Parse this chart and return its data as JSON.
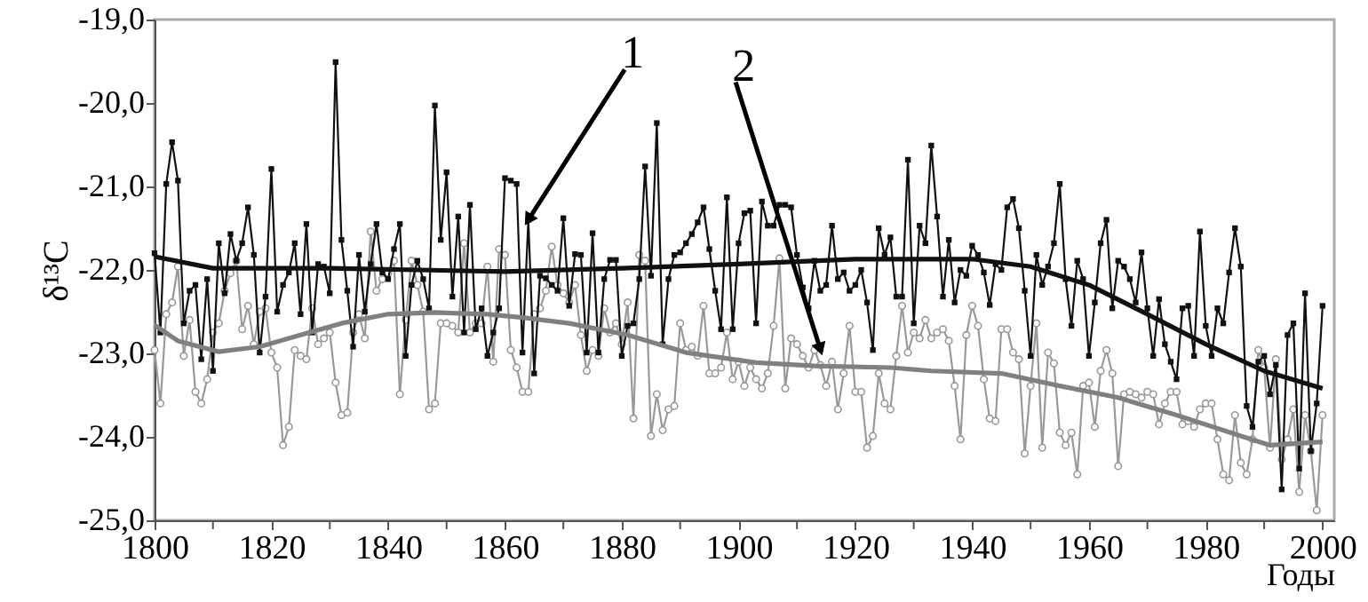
{
  "chart_data": {
    "type": "line",
    "xlabel": "Годы",
    "ylabel": "δ¹³C",
    "xlim": [
      1800,
      2002
    ],
    "ylim": [
      -25,
      -19
    ],
    "xticks": [
      1800,
      {
        "value": 1810,
        "label": null
      },
      1820,
      {
        "value": 1830,
        "label": null
      },
      1840,
      {
        "value": 1850,
        "label": null
      },
      1860,
      {
        "value": 1870,
        "label": null
      },
      1880,
      {
        "value": 1890,
        "label": null
      },
      1900,
      {
        "value": 1910,
        "label": null
      },
      1920,
      {
        "value": 1930,
        "label": null
      },
      1940,
      {
        "value": 1950,
        "label": null
      },
      1960,
      {
        "value": 1970,
        "label": null
      },
      1980,
      {
        "value": 1990,
        "label": null
      },
      2000
    ],
    "yticks": [
      {
        "value": -25,
        "label": "-25,0"
      },
      {
        "value": -24,
        "label": "-24,0"
      },
      {
        "value": -23,
        "label": "-23,0"
      },
      {
        "value": -22,
        "label": "-22,0"
      },
      {
        "value": -21,
        "label": "-21,0"
      },
      {
        "value": -20,
        "label": "-20,0"
      },
      {
        "value": -19,
        "label": "-19,0"
      }
    ],
    "x": [
      1800,
      1801,
      1802,
      1803,
      1804,
      1805,
      1806,
      1807,
      1808,
      1809,
      1810,
      1811,
      1812,
      1813,
      1814,
      1815,
      1816,
      1817,
      1818,
      1819,
      1820,
      1821,
      1822,
      1823,
      1824,
      1825,
      1826,
      1827,
      1828,
      1829,
      1830,
      1831,
      1832,
      1833,
      1834,
      1835,
      1836,
      1837,
      1838,
      1839,
      1840,
      1841,
      1842,
      1843,
      1844,
      1845,
      1846,
      1847,
      1848,
      1849,
      1850,
      1851,
      1852,
      1853,
      1854,
      1855,
      1856,
      1857,
      1858,
      1859,
      1860,
      1861,
      1862,
      1863,
      1864,
      1865,
      1866,
      1867,
      1868,
      1869,
      1870,
      1871,
      1872,
      1873,
      1874,
      1875,
      1876,
      1877,
      1878,
      1879,
      1880,
      1881,
      1882,
      1883,
      1884,
      1885,
      1886,
      1887,
      1888,
      1889,
      1890,
      1891,
      1892,
      1893,
      1894,
      1895,
      1896,
      1897,
      1898,
      1899,
      1900,
      1901,
      1902,
      1903,
      1904,
      1905,
      1906,
      1907,
      1908,
      1909,
      1910,
      1911,
      1912,
      1913,
      1914,
      1915,
      1916,
      1917,
      1918,
      1919,
      1920,
      1921,
      1922,
      1923,
      1924,
      1925,
      1926,
      1927,
      1928,
      1929,
      1930,
      1931,
      1932,
      1933,
      1934,
      1935,
      1936,
      1937,
      1938,
      1939,
      1940,
      1941,
      1942,
      1943,
      1944,
      1945,
      1946,
      1947,
      1948,
      1949,
      1950,
      1951,
      1952,
      1953,
      1954,
      1955,
      1956,
      1957,
      1958,
      1959,
      1960,
      1961,
      1962,
      1963,
      1964,
      1965,
      1966,
      1967,
      1968,
      1969,
      1970,
      1971,
      1972,
      1973,
      1974,
      1975,
      1976,
      1977,
      1978,
      1979,
      1980,
      1981,
      1982,
      1983,
      1984,
      1985,
      1986,
      1987,
      1988,
      1989,
      1990,
      1991,
      1992,
      1993,
      1994,
      1995,
      1996,
      1997,
      1998,
      1999,
      2000
    ],
    "series": [
      {
        "color": "#999999",
        "marker": "circle",
        "values": [
          -22.96,
          -23.6,
          -22.53,
          -22.39,
          -21.96,
          -23.03,
          -22.6,
          -23.46,
          -23.6,
          -23.31,
          -22.75,
          -22.64,
          -22.25,
          -22.04,
          -21.89,
          -22.71,
          -22.43,
          -22.89,
          -22.5,
          -22.46,
          -22.99,
          -23.17,
          -24.1,
          -23.88,
          -22.96,
          -23.03,
          -23.07,
          -22.46,
          -22.89,
          -22.82,
          -22.75,
          -23.35,
          -23.74,
          -23.71,
          -22.75,
          -22.53,
          -22.82,
          -21.54,
          -22.25,
          -22.11,
          -22.04,
          -21.89,
          -23.49,
          -22.6,
          -21.89,
          -22.18,
          -22.5,
          -23.67,
          -23.6,
          -22.64,
          -22.64,
          -22.67,
          -22.75,
          -21.68,
          -22.75,
          -22.64,
          -22.64,
          -21.96,
          -23.1,
          -21.75,
          -21.82,
          -22.96,
          -23.17,
          -23.46,
          -23.46,
          -22.53,
          -22.46,
          -22.25,
          -21.72,
          -22.18,
          -22.28,
          -22.39,
          -22.18,
          -22.78,
          -23.21,
          -22.96,
          -23.03,
          -22.46,
          -22.75,
          -22.64,
          -22.89,
          -22.39,
          -23.78,
          -21.82,
          -21.89,
          -23.99,
          -23.49,
          -23.92,
          -23.67,
          -23.63,
          -22.64,
          -22.96,
          -22.92,
          -23.03,
          -22.43,
          -23.24,
          -23.24,
          -23.17,
          -22.75,
          -23.31,
          -23.1,
          -23.39,
          -23.17,
          -23.31,
          -23.42,
          -23.24,
          -22.67,
          -21.86,
          -23.42,
          -22.82,
          -22.89,
          -23.03,
          -23.17,
          -22.96,
          -23.14,
          -23.39,
          -23.1,
          -23.67,
          -23.24,
          -22.67,
          -23.46,
          -23.46,
          -24.13,
          -23.99,
          -23.24,
          -23.6,
          -23.67,
          -23.03,
          -22.43,
          -22.99,
          -22.75,
          -22.82,
          -22.6,
          -22.82,
          -22.75,
          -22.71,
          -22.85,
          -23.39,
          -24.03,
          -22.78,
          -22.43,
          -22.67,
          -23.31,
          -23.78,
          -23.81,
          -22.71,
          -22.71,
          -22.99,
          -23.07,
          -24.2,
          -23.39,
          -22.64,
          -24.13,
          -22.99,
          -23.12,
          -23.95,
          -24.1,
          -23.95,
          -24.45,
          -23.39,
          -23.35,
          -23.88,
          -23.21,
          -22.96,
          -23.24,
          -24.35,
          -23.49,
          -23.46,
          -23.49,
          -23.53,
          -23.46,
          -23.49,
          -23.85,
          -23.6,
          -23.46,
          -23.46,
          -23.85,
          -23.81,
          -23.88,
          -23.67,
          -23.6,
          -23.6,
          -24.03,
          -24.45,
          -24.52,
          -23.74,
          -24.31,
          -24.45,
          -24.03,
          -22.96,
          -23.17,
          -24.13,
          -23.07,
          -24.27,
          -24.03,
          -23.67,
          -24.66,
          -23.74,
          -24.17,
          -24.88,
          -23.74
        ]
      },
      {
        "color": "#111111",
        "marker": "square",
        "values": [
          -21.8,
          -22.75,
          -20.97,
          -20.47,
          -20.93,
          -22.64,
          -22.25,
          -22.18,
          -23.07,
          -22.11,
          -23.21,
          -21.68,
          -22.28,
          -21.57,
          -21.89,
          -21.68,
          -21.25,
          -21.82,
          -22.99,
          -22.32,
          -20.79,
          -22.5,
          -22.18,
          -22.03,
          -21.68,
          -22.53,
          -21.45,
          -22.75,
          -21.93,
          -21.96,
          -22.28,
          -19.51,
          -21.64,
          -22.25,
          -22.92,
          -21.82,
          -22.5,
          -21.93,
          -21.45,
          -22.03,
          -22.11,
          -21.75,
          -21.45,
          -23.03,
          -22.18,
          -21.89,
          -22.11,
          -22.46,
          -20.03,
          -21.64,
          -20.83,
          -22.32,
          -21.36,
          -22.75,
          -21.22,
          -22.71,
          -22.46,
          -23.03,
          -22.75,
          -22.46,
          -20.9,
          -20.93,
          -20.97,
          -22.99,
          -21.4,
          -23.24,
          -22.07,
          -22.1,
          -22.18,
          -22.25,
          -21.38,
          -22.43,
          -21.81,
          -21.82,
          -22.99,
          -21.56,
          -22.99,
          -22.11,
          -21.88,
          -21.88,
          -23.03,
          -22.67,
          -22.64,
          -22.11,
          -20.76,
          -22.07,
          -20.24,
          -22.89,
          -22.11,
          -21.82,
          -21.79,
          -21.68,
          -21.57,
          -21.43,
          -21.25,
          -21.75,
          -22.25,
          -22.71,
          -21.13,
          -22.71,
          -21.68,
          -21.32,
          -21.29,
          -22.64,
          -21.18,
          -21.47,
          -21.47,
          -21.22,
          -21.22,
          -21.25,
          -21.82,
          -22.21,
          -22.46,
          -21.89,
          -22.25,
          -22.18,
          -21.47,
          -22.11,
          -22.03,
          -22.25,
          -22.18,
          -22.0,
          -22.39,
          -22.96,
          -21.5,
          -21.82,
          -21.61,
          -22.32,
          -22.32,
          -20.68,
          -22.64,
          -21.47,
          -21.68,
          -20.51,
          -21.36,
          -22.32,
          -21.64,
          -22.39,
          -22.0,
          -22.07,
          -21.71,
          -21.82,
          -22.03,
          -22.42,
          -21.93,
          -22.0,
          -21.25,
          -21.15,
          -21.5,
          -22.25,
          -23.03,
          -21.82,
          -22.18,
          -21.96,
          -21.68,
          -20.97,
          -22.11,
          -22.67,
          -21.89,
          -22.11,
          -23.03,
          -22.39,
          -21.68,
          -21.4,
          -22.46,
          -21.89,
          -21.96,
          -22.11,
          -22.39,
          -21.79,
          -22.46,
          -23.03,
          -22.35,
          -22.89,
          -23.1,
          -23.31,
          -22.46,
          -22.43,
          -23.03,
          -21.54,
          -22.67,
          -23.03,
          -22.46,
          -22.64,
          -22.03,
          -21.5,
          -21.96,
          -23.63,
          -23.88,
          -23.1,
          -23.03,
          -23.49,
          -23.14,
          -24.63,
          -22.78,
          -22.64,
          -24.38,
          -22.28,
          -24.17,
          -23.6,
          -22.43
        ]
      },
      {
        "type": "line",
        "color": "#111111",
        "marker": "none",
        "x": [
          1800,
          1810,
          1830,
          1860,
          1880,
          1900,
          1920,
          1940,
          1950,
          1960,
          1970,
          1980,
          1990,
          2000
        ],
        "values": [
          -21.84,
          -21.98,
          -21.98,
          -22.02,
          -21.98,
          -21.93,
          -21.87,
          -21.87,
          -21.96,
          -22.18,
          -22.53,
          -22.89,
          -23.21,
          -23.42
        ]
      },
      {
        "type": "line",
        "color": "#808080",
        "marker": "none",
        "x": [
          1800,
          1804,
          1811,
          1818,
          1825,
          1832,
          1840,
          1848,
          1857,
          1863,
          1871,
          1881,
          1891,
          1903,
          1913,
          1926,
          1933,
          1945,
          1955,
          1965,
          1975,
          1986,
          1991,
          2000
        ],
        "values": [
          -22.66,
          -22.85,
          -22.98,
          -22.92,
          -22.78,
          -22.64,
          -22.53,
          -22.51,
          -22.53,
          -22.57,
          -22.64,
          -22.78,
          -22.99,
          -23.11,
          -23.15,
          -23.17,
          -23.21,
          -23.24,
          -23.39,
          -23.53,
          -23.74,
          -23.99,
          -24.1,
          -24.06
        ]
      }
    ],
    "annotations": [
      {
        "text": "1",
        "x": 1864,
        "y": -21.4
      },
      {
        "text": "2",
        "x": 1914,
        "y": -22.95
      }
    ]
  }
}
